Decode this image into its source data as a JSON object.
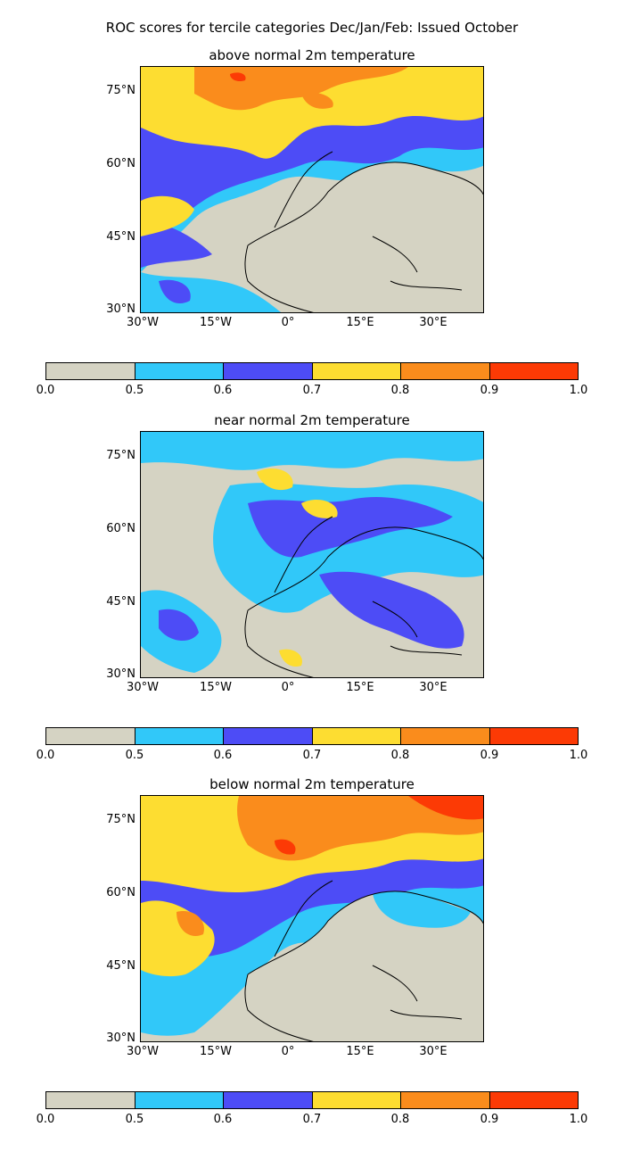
{
  "suptitle": "ROC scores for tercile categories Dec/Jan/Feb: Issued October",
  "axes": {
    "lat_labels": [
      "75°N",
      "60°N",
      "45°N",
      "30°N"
    ],
    "lon_labels": [
      "30°W",
      "15°W",
      "0°",
      "15°E",
      "30°E"
    ]
  },
  "colorbar": {
    "levels": [
      "0.0",
      "0.5",
      "0.6",
      "0.7",
      "0.8",
      "0.9",
      "1.0"
    ],
    "colors": [
      "#d5d3c3",
      "#31c8f9",
      "#4d4cf6",
      "#fddd31",
      "#fa8c1c",
      "#fc3a05"
    ]
  },
  "panels": [
    {
      "title": "above normal 2m temperature"
    },
    {
      "title": "near normal 2m temperature"
    },
    {
      "title": "below normal 2m temperature"
    }
  ]
}
